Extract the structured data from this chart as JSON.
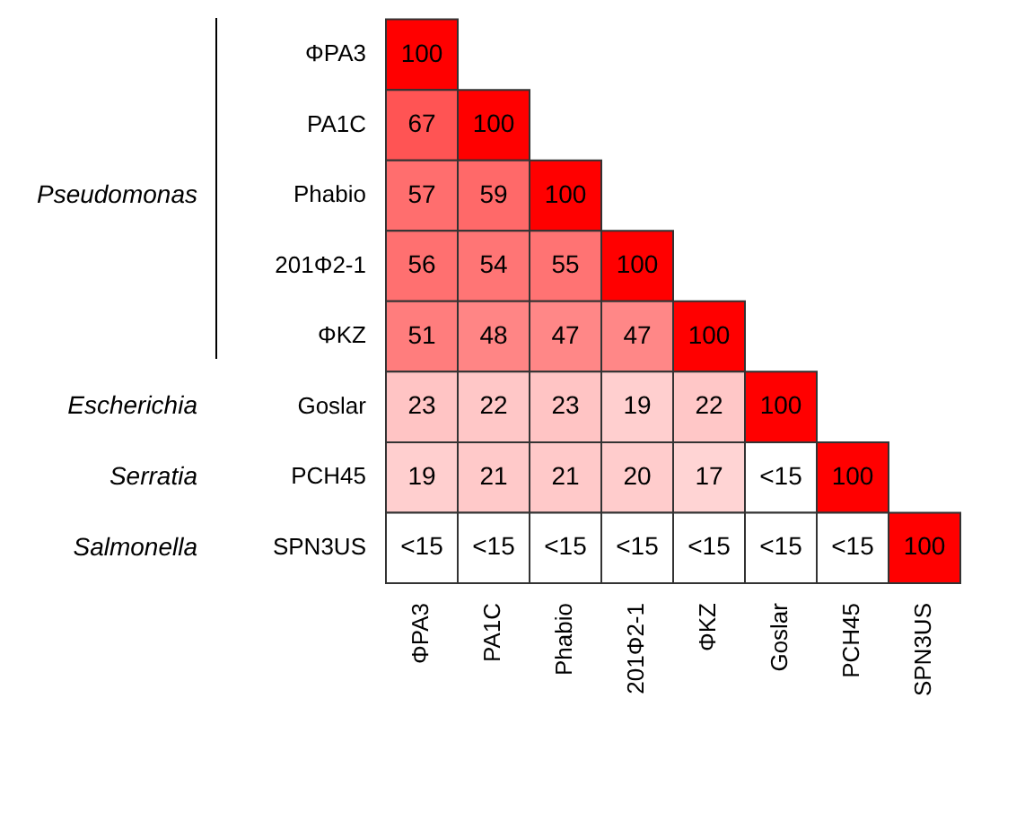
{
  "chart_data": {
    "type": "heatmap",
    "categories": [
      "ΦPA3",
      "PA1C",
      "Phabio",
      "201Φ2-1",
      "ΦKZ",
      "Goslar",
      "PCH45",
      "SPN3US"
    ],
    "y_categories": [
      "ΦPA3",
      "PA1C",
      "Phabio",
      "201Φ2-1",
      "ΦKZ",
      "Goslar",
      "PCH45",
      "SPN3US"
    ],
    "cells": [
      [
        100,
        null,
        null,
        null,
        null,
        null,
        null,
        null
      ],
      [
        67,
        100,
        null,
        null,
        null,
        null,
        null,
        null
      ],
      [
        57,
        59,
        100,
        null,
        null,
        null,
        null,
        null
      ],
      [
        56,
        54,
        55,
        100,
        null,
        null,
        null,
        null
      ],
      [
        51,
        48,
        47,
        47,
        100,
        null,
        null,
        null
      ],
      [
        23,
        22,
        23,
        19,
        22,
        100,
        null,
        null
      ],
      [
        19,
        21,
        21,
        20,
        17,
        null,
        100,
        null
      ],
      [
        null,
        null,
        null,
        null,
        null,
        null,
        null,
        100
      ]
    ],
    "cell_labels": [
      [
        "100",
        null,
        null,
        null,
        null,
        null,
        null,
        null
      ],
      [
        "67",
        "100",
        null,
        null,
        null,
        null,
        null,
        null
      ],
      [
        "57",
        "59",
        "100",
        null,
        null,
        null,
        null,
        null
      ],
      [
        "56",
        "54",
        "55",
        "100",
        null,
        null,
        null,
        null
      ],
      [
        "51",
        "48",
        "47",
        "47",
        "100",
        null,
        null,
        null
      ],
      [
        "23",
        "22",
        "23",
        "19",
        "22",
        "100",
        null,
        null
      ],
      [
        "19",
        "21",
        "21",
        "20",
        "17",
        "<15",
        "100",
        null
      ],
      [
        "<15",
        "<15",
        "<15",
        "<15",
        "<15",
        "<15",
        "<15",
        "100"
      ]
    ],
    "annotations": [
      "Pseudomonas",
      "Escherichia",
      "Serratia",
      "Salmonella"
    ]
  }
}
